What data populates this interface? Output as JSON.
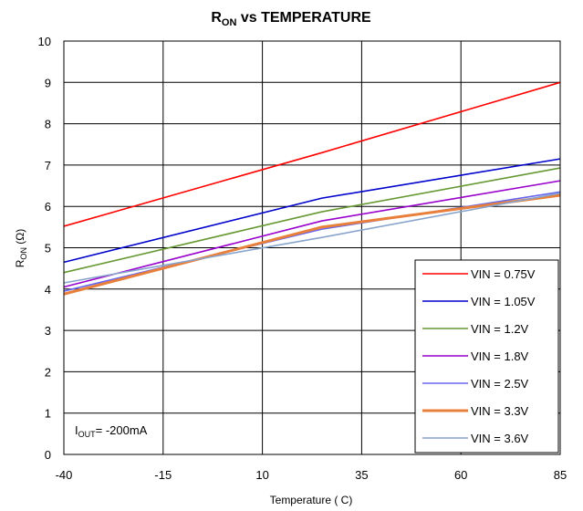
{
  "chart_data": {
    "type": "line",
    "title": {
      "main": "R",
      "sub": "ON",
      "rest": " vs TEMPERATURE"
    },
    "xlabel": "Temperature ( C)",
    "ylabel": {
      "main": "R",
      "sub": "ON",
      "rest": " (Ω)"
    },
    "annotation": {
      "main": "I",
      "sub": "OUT",
      "rest": "= -200mA"
    },
    "xlim": [
      -40,
      85
    ],
    "ylim": [
      0,
      10
    ],
    "xticks": [
      -40,
      -15,
      10,
      35,
      60,
      85
    ],
    "yticks": [
      0,
      1,
      2,
      3,
      4,
      5,
      6,
      7,
      8,
      9,
      10
    ],
    "grid": true,
    "legend_position": "bottom-right",
    "series": [
      {
        "name": "VIN = 0.75V",
        "color": "#ff0000",
        "x": [
          -40,
          25,
          85
        ],
        "y": [
          5.52,
          7.3,
          9.0
        ]
      },
      {
        "name": "VIN = 1.05V",
        "color": "#0000cc",
        "x": [
          -40,
          25,
          85
        ],
        "y": [
          4.65,
          6.2,
          7.15
        ]
      },
      {
        "name": "VIN = 1.2V",
        "color": "#669933",
        "x": [
          -40,
          25,
          85
        ],
        "y": [
          4.4,
          5.87,
          6.93
        ]
      },
      {
        "name": "VIN = 1.8V",
        "color": "#9900cc",
        "x": [
          -40,
          25,
          85
        ],
        "y": [
          4.05,
          5.65,
          6.62
        ]
      },
      {
        "name": "VIN = 2.5V",
        "color": "#6666ee",
        "x": [
          -40,
          25,
          85
        ],
        "y": [
          3.95,
          5.45,
          6.35
        ]
      },
      {
        "name": "VIN = 3.3V",
        "color": "#e8803c",
        "x": [
          -40,
          25,
          85
        ],
        "y": [
          3.88,
          5.5,
          6.27
        ]
      },
      {
        "name": "VIN = 3.6V",
        "color": "#88a4cc",
        "x": [
          -40,
          25,
          85
        ],
        "y": [
          4.15,
          5.25,
          6.32
        ]
      }
    ]
  }
}
